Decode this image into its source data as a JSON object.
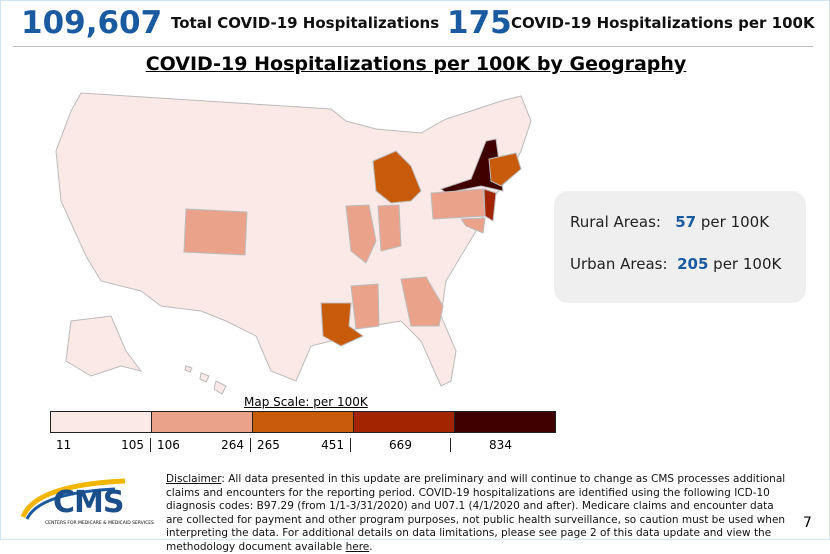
{
  "header": {
    "total_value": "109,607",
    "total_label": "Total COVID-19 Hospitalizations",
    "rate_value": "175",
    "rate_label": "COVID-19 Hospitalizations per 100K"
  },
  "map": {
    "title": "COVID-19 Hospitalizations per 100K by Geography",
    "state_colors": {
      "default": "#fbe9e7",
      "CO": "#eba28b",
      "IL": "#eba28b",
      "IN": "#eba28b",
      "MS": "#eba28b",
      "GA": "#eba28b",
      "PA": "#eba28b",
      "MD": "#eba28b",
      "MI": "#c85b0a",
      "LA": "#c85b0a",
      "MA": "#c85b0a",
      "CT": "#c85b0a",
      "NJ": "#a32400",
      "NY": "#3f0000"
    }
  },
  "scale": {
    "title": "Map Scale: per 100K",
    "bins": [
      {
        "low": "11",
        "high": "105",
        "color": "#fbe9e7"
      },
      {
        "low": "106",
        "high": "264",
        "color": "#eba28b"
      },
      {
        "low": "265",
        "high": "451",
        "color": "#c85b0a"
      },
      {
        "low": "669",
        "high": "",
        "color": "#a32400"
      },
      {
        "low": "834",
        "high": "",
        "color": "#3f0000"
      }
    ]
  },
  "summary": {
    "rural_label": "Rural Areas:",
    "rural_value": "57",
    "rural_unit": "per 100K",
    "urban_label": "Urban Areas:",
    "urban_value": "205",
    "urban_unit": "per 100K"
  },
  "footer": {
    "disclaimer_label": "Disclaimer",
    "disclaimer_text": ": All data presented in this update are preliminary and will continue to change as CMS processes additional claims and encounters for the reporting period.  COVID-19 hospitalizations are identified using the following ICD-10 diagnosis codes: B97.29 (from 1/1-3/31/2020) and U07.1 (4/1/2020 and after). Medicare claims and encounter data are collected for payment and other program purposes, not public health surveillance, so caution must be used when interpreting the data.  For additional details on data limitations, please see page 2 of this data update and view the methodology document available ",
    "link": "here",
    "period": ".",
    "logo_text": "CMS",
    "logo_sub": "CENTERS FOR MEDICARE & MEDICAID SERVICES",
    "page": "7"
  }
}
